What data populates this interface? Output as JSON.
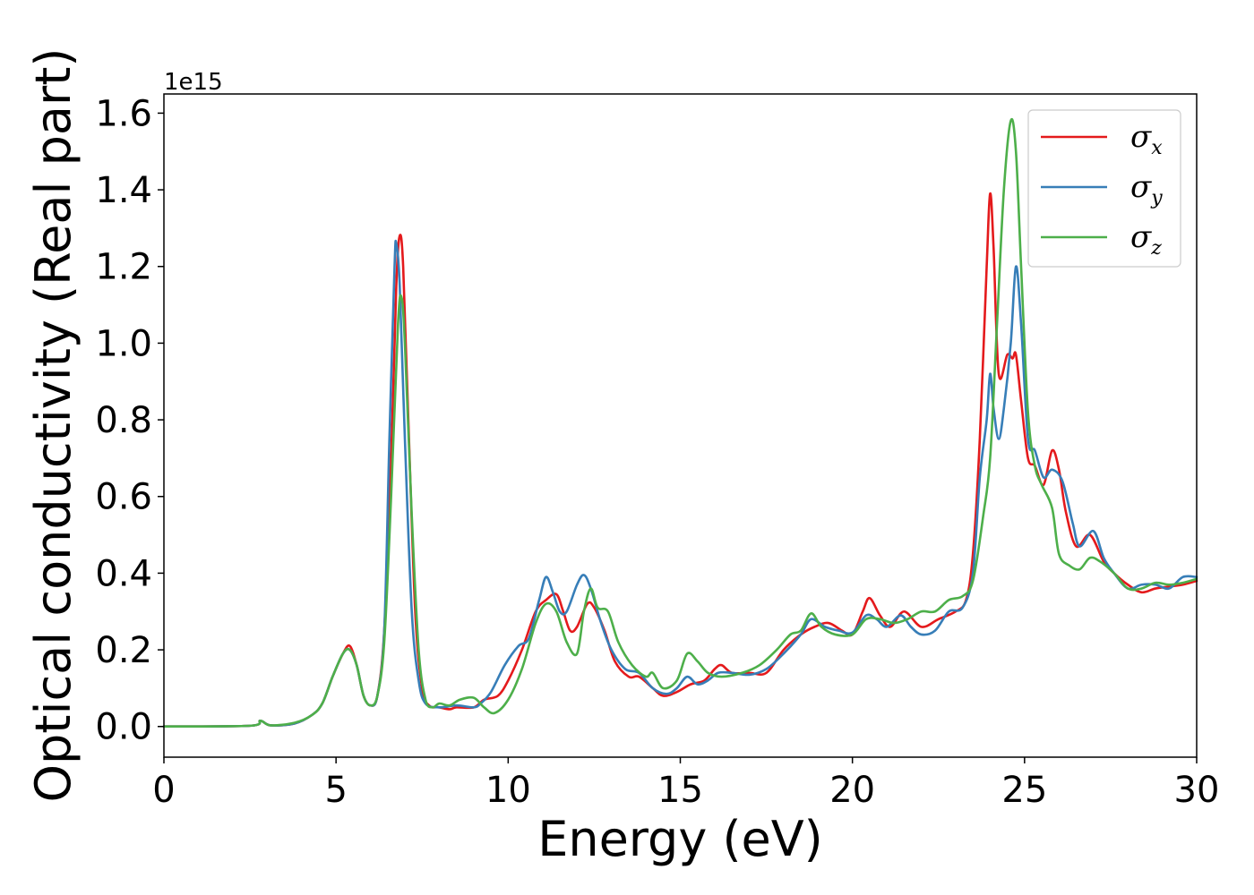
{
  "chart_data": {
    "type": "line",
    "title": "",
    "xlabel": "Energy (eV)",
    "ylabel": "Optical conductivity (Real part)",
    "y_offset_label": "1e15",
    "xlim": [
      0,
      30
    ],
    "ylim": [
      -0.08,
      1.65
    ],
    "xticks": [
      0,
      5,
      10,
      15,
      20,
      25,
      30
    ],
    "xtick_labels": [
      "0",
      "5",
      "10",
      "15",
      "20",
      "25",
      "30"
    ],
    "yticks": [
      0.0,
      0.2,
      0.4,
      0.6,
      0.8,
      1.0,
      1.2,
      1.4,
      1.6
    ],
    "ytick_labels": [
      "0.0",
      "0.2",
      "0.4",
      "0.6",
      "0.8",
      "1.0",
      "1.2",
      "1.4",
      "1.6"
    ],
    "grid": false,
    "legend_position": "top-right",
    "series": [
      {
        "name": "σx",
        "label_main": "σ",
        "label_sub": "x",
        "color": "#e41a1c",
        "points": [
          [
            0,
            0
          ],
          [
            2.5,
            0.002
          ],
          [
            2.8,
            0.015
          ],
          [
            3.1,
            0.003
          ],
          [
            3.8,
            0.008
          ],
          [
            4.3,
            0.03
          ],
          [
            4.6,
            0.06
          ],
          [
            4.9,
            0.13
          ],
          [
            5.2,
            0.19
          ],
          [
            5.4,
            0.21
          ],
          [
            5.6,
            0.16
          ],
          [
            5.8,
            0.08
          ],
          [
            6.0,
            0.055
          ],
          [
            6.2,
            0.08
          ],
          [
            6.4,
            0.25
          ],
          [
            6.6,
            0.7
          ],
          [
            6.75,
            1.15
          ],
          [
            6.85,
            1.28
          ],
          [
            6.95,
            1.2
          ],
          [
            7.1,
            0.8
          ],
          [
            7.3,
            0.3
          ],
          [
            7.5,
            0.1
          ],
          [
            7.7,
            0.055
          ],
          [
            8.0,
            0.05
          ],
          [
            8.3,
            0.045
          ],
          [
            8.5,
            0.05
          ],
          [
            9.0,
            0.05
          ],
          [
            9.3,
            0.07
          ],
          [
            9.7,
            0.08
          ],
          [
            10.0,
            0.12
          ],
          [
            10.4,
            0.2
          ],
          [
            10.8,
            0.3
          ],
          [
            11.1,
            0.33
          ],
          [
            11.4,
            0.345
          ],
          [
            11.6,
            0.3
          ],
          [
            11.8,
            0.25
          ],
          [
            12.0,
            0.26
          ],
          [
            12.3,
            0.32
          ],
          [
            12.5,
            0.31
          ],
          [
            12.8,
            0.25
          ],
          [
            13.1,
            0.17
          ],
          [
            13.5,
            0.13
          ],
          [
            13.8,
            0.13
          ],
          [
            14.2,
            0.1
          ],
          [
            14.5,
            0.08
          ],
          [
            14.9,
            0.09
          ],
          [
            15.3,
            0.11
          ],
          [
            15.7,
            0.12
          ],
          [
            16.0,
            0.15
          ],
          [
            16.2,
            0.16
          ],
          [
            16.5,
            0.14
          ],
          [
            17.0,
            0.14
          ],
          [
            17.5,
            0.14
          ],
          [
            18.0,
            0.2
          ],
          [
            18.5,
            0.24
          ],
          [
            18.9,
            0.26
          ],
          [
            19.3,
            0.27
          ],
          [
            19.7,
            0.25
          ],
          [
            20.0,
            0.24
          ],
          [
            20.3,
            0.3
          ],
          [
            20.5,
            0.335
          ],
          [
            20.8,
            0.29
          ],
          [
            21.1,
            0.26
          ],
          [
            21.5,
            0.3
          ],
          [
            22.0,
            0.26
          ],
          [
            22.5,
            0.28
          ],
          [
            23.0,
            0.3
          ],
          [
            23.3,
            0.33
          ],
          [
            23.5,
            0.45
          ],
          [
            23.7,
            0.75
          ],
          [
            23.9,
            1.2
          ],
          [
            24.0,
            1.39
          ],
          [
            24.1,
            1.25
          ],
          [
            24.25,
            0.92
          ],
          [
            24.5,
            0.97
          ],
          [
            24.65,
            0.96
          ],
          [
            24.75,
            0.97
          ],
          [
            24.9,
            0.85
          ],
          [
            25.1,
            0.7
          ],
          [
            25.3,
            0.68
          ],
          [
            25.55,
            0.63
          ],
          [
            25.8,
            0.72
          ],
          [
            26.0,
            0.67
          ],
          [
            26.2,
            0.56
          ],
          [
            26.5,
            0.47
          ],
          [
            26.9,
            0.5
          ],
          [
            27.3,
            0.43
          ],
          [
            27.6,
            0.4
          ],
          [
            28.0,
            0.37
          ],
          [
            28.4,
            0.35
          ],
          [
            28.8,
            0.36
          ],
          [
            29.2,
            0.365
          ],
          [
            29.6,
            0.37
          ],
          [
            30.0,
            0.38
          ]
        ]
      },
      {
        "name": "σy",
        "label_main": "σ",
        "label_sub": "y",
        "color": "#377eb8",
        "points": [
          [
            0,
            0
          ],
          [
            2.5,
            0.002
          ],
          [
            2.8,
            0.015
          ],
          [
            3.1,
            0.003
          ],
          [
            3.8,
            0.008
          ],
          [
            4.3,
            0.03
          ],
          [
            4.6,
            0.06
          ],
          [
            4.9,
            0.13
          ],
          [
            5.2,
            0.19
          ],
          [
            5.4,
            0.2
          ],
          [
            5.6,
            0.16
          ],
          [
            5.8,
            0.08
          ],
          [
            6.0,
            0.055
          ],
          [
            6.2,
            0.08
          ],
          [
            6.4,
            0.25
          ],
          [
            6.55,
            0.75
          ],
          [
            6.7,
            1.2
          ],
          [
            6.75,
            1.26
          ],
          [
            6.85,
            1.15
          ],
          [
            7.0,
            0.75
          ],
          [
            7.2,
            0.3
          ],
          [
            7.4,
            0.12
          ],
          [
            7.6,
            0.06
          ],
          [
            8.0,
            0.05
          ],
          [
            8.5,
            0.055
          ],
          [
            9.0,
            0.05
          ],
          [
            9.2,
            0.06
          ],
          [
            9.5,
            0.09
          ],
          [
            9.9,
            0.16
          ],
          [
            10.3,
            0.21
          ],
          [
            10.6,
            0.23
          ],
          [
            10.9,
            0.33
          ],
          [
            11.1,
            0.39
          ],
          [
            11.3,
            0.35
          ],
          [
            11.5,
            0.3
          ],
          [
            11.7,
            0.3
          ],
          [
            12.0,
            0.37
          ],
          [
            12.2,
            0.395
          ],
          [
            12.4,
            0.36
          ],
          [
            12.7,
            0.27
          ],
          [
            13.0,
            0.2
          ],
          [
            13.4,
            0.15
          ],
          [
            13.8,
            0.14
          ],
          [
            14.2,
            0.1
          ],
          [
            14.6,
            0.085
          ],
          [
            14.9,
            0.1
          ],
          [
            15.2,
            0.13
          ],
          [
            15.5,
            0.11
          ],
          [
            15.8,
            0.12
          ],
          [
            16.1,
            0.14
          ],
          [
            16.5,
            0.14
          ],
          [
            17.0,
            0.135
          ],
          [
            17.5,
            0.15
          ],
          [
            18.0,
            0.19
          ],
          [
            18.5,
            0.24
          ],
          [
            18.8,
            0.28
          ],
          [
            19.2,
            0.26
          ],
          [
            19.6,
            0.25
          ],
          [
            20.0,
            0.245
          ],
          [
            20.4,
            0.29
          ],
          [
            20.7,
            0.28
          ],
          [
            21.0,
            0.26
          ],
          [
            21.4,
            0.29
          ],
          [
            21.7,
            0.26
          ],
          [
            22.0,
            0.24
          ],
          [
            22.4,
            0.25
          ],
          [
            22.8,
            0.3
          ],
          [
            23.2,
            0.31
          ],
          [
            23.5,
            0.4
          ],
          [
            23.7,
            0.65
          ],
          [
            23.9,
            0.8
          ],
          [
            24.0,
            0.92
          ],
          [
            24.1,
            0.83
          ],
          [
            24.25,
            0.75
          ],
          [
            24.4,
            0.83
          ],
          [
            24.6,
            1.0
          ],
          [
            24.75,
            1.2
          ],
          [
            24.9,
            1.05
          ],
          [
            25.1,
            0.75
          ],
          [
            25.3,
            0.72
          ],
          [
            25.55,
            0.65
          ],
          [
            25.8,
            0.67
          ],
          [
            26.1,
            0.64
          ],
          [
            26.4,
            0.53
          ],
          [
            26.6,
            0.47
          ],
          [
            27.0,
            0.51
          ],
          [
            27.3,
            0.44
          ],
          [
            27.6,
            0.4
          ],
          [
            28.0,
            0.36
          ],
          [
            28.4,
            0.37
          ],
          [
            28.8,
            0.37
          ],
          [
            29.2,
            0.36
          ],
          [
            29.6,
            0.39
          ],
          [
            30.0,
            0.39
          ]
        ]
      },
      {
        "name": "σz",
        "label_main": "σ",
        "label_sub": "z",
        "color": "#4daf4a",
        "points": [
          [
            0,
            0
          ],
          [
            2.5,
            0.002
          ],
          [
            2.8,
            0.015
          ],
          [
            3.1,
            0.003
          ],
          [
            3.8,
            0.01
          ],
          [
            4.3,
            0.03
          ],
          [
            4.6,
            0.06
          ],
          [
            4.9,
            0.13
          ],
          [
            5.2,
            0.19
          ],
          [
            5.4,
            0.2
          ],
          [
            5.6,
            0.16
          ],
          [
            5.8,
            0.08
          ],
          [
            6.0,
            0.055
          ],
          [
            6.2,
            0.08
          ],
          [
            6.4,
            0.22
          ],
          [
            6.6,
            0.6
          ],
          [
            6.8,
            1.05
          ],
          [
            6.9,
            1.12
          ],
          [
            7.0,
            1.0
          ],
          [
            7.2,
            0.55
          ],
          [
            7.4,
            0.2
          ],
          [
            7.6,
            0.07
          ],
          [
            7.8,
            0.05
          ],
          [
            8.0,
            0.06
          ],
          [
            8.3,
            0.055
          ],
          [
            8.6,
            0.07
          ],
          [
            9.0,
            0.075
          ],
          [
            9.3,
            0.05
          ],
          [
            9.6,
            0.035
          ],
          [
            10.0,
            0.07
          ],
          [
            10.4,
            0.15
          ],
          [
            10.8,
            0.27
          ],
          [
            11.1,
            0.32
          ],
          [
            11.4,
            0.3
          ],
          [
            11.7,
            0.22
          ],
          [
            12.0,
            0.19
          ],
          [
            12.2,
            0.3
          ],
          [
            12.4,
            0.36
          ],
          [
            12.6,
            0.31
          ],
          [
            12.9,
            0.3
          ],
          [
            13.2,
            0.22
          ],
          [
            13.6,
            0.16
          ],
          [
            14.0,
            0.13
          ],
          [
            14.2,
            0.14
          ],
          [
            14.5,
            0.1
          ],
          [
            14.9,
            0.12
          ],
          [
            15.2,
            0.19
          ],
          [
            15.5,
            0.17
          ],
          [
            15.8,
            0.14
          ],
          [
            16.2,
            0.13
          ],
          [
            16.8,
            0.14
          ],
          [
            17.3,
            0.16
          ],
          [
            17.8,
            0.2
          ],
          [
            18.2,
            0.24
          ],
          [
            18.5,
            0.25
          ],
          [
            18.8,
            0.295
          ],
          [
            19.1,
            0.26
          ],
          [
            19.5,
            0.24
          ],
          [
            20.0,
            0.24
          ],
          [
            20.4,
            0.28
          ],
          [
            20.8,
            0.28
          ],
          [
            21.2,
            0.27
          ],
          [
            21.6,
            0.28
          ],
          [
            22.0,
            0.3
          ],
          [
            22.4,
            0.3
          ],
          [
            22.8,
            0.33
          ],
          [
            23.2,
            0.34
          ],
          [
            23.5,
            0.38
          ],
          [
            23.8,
            0.55
          ],
          [
            24.0,
            0.7
          ],
          [
            24.2,
            1.05
          ],
          [
            24.4,
            1.4
          ],
          [
            24.6,
            1.58
          ],
          [
            24.75,
            1.5
          ],
          [
            24.9,
            1.2
          ],
          [
            25.1,
            0.82
          ],
          [
            25.3,
            0.68
          ],
          [
            25.5,
            0.63
          ],
          [
            25.8,
            0.57
          ],
          [
            26.0,
            0.45
          ],
          [
            26.3,
            0.42
          ],
          [
            26.6,
            0.41
          ],
          [
            26.9,
            0.44
          ],
          [
            27.2,
            0.43
          ],
          [
            27.6,
            0.4
          ],
          [
            28.0,
            0.36
          ],
          [
            28.4,
            0.36
          ],
          [
            28.8,
            0.375
          ],
          [
            29.2,
            0.37
          ],
          [
            29.6,
            0.375
          ],
          [
            30.0,
            0.385
          ]
        ]
      }
    ]
  }
}
